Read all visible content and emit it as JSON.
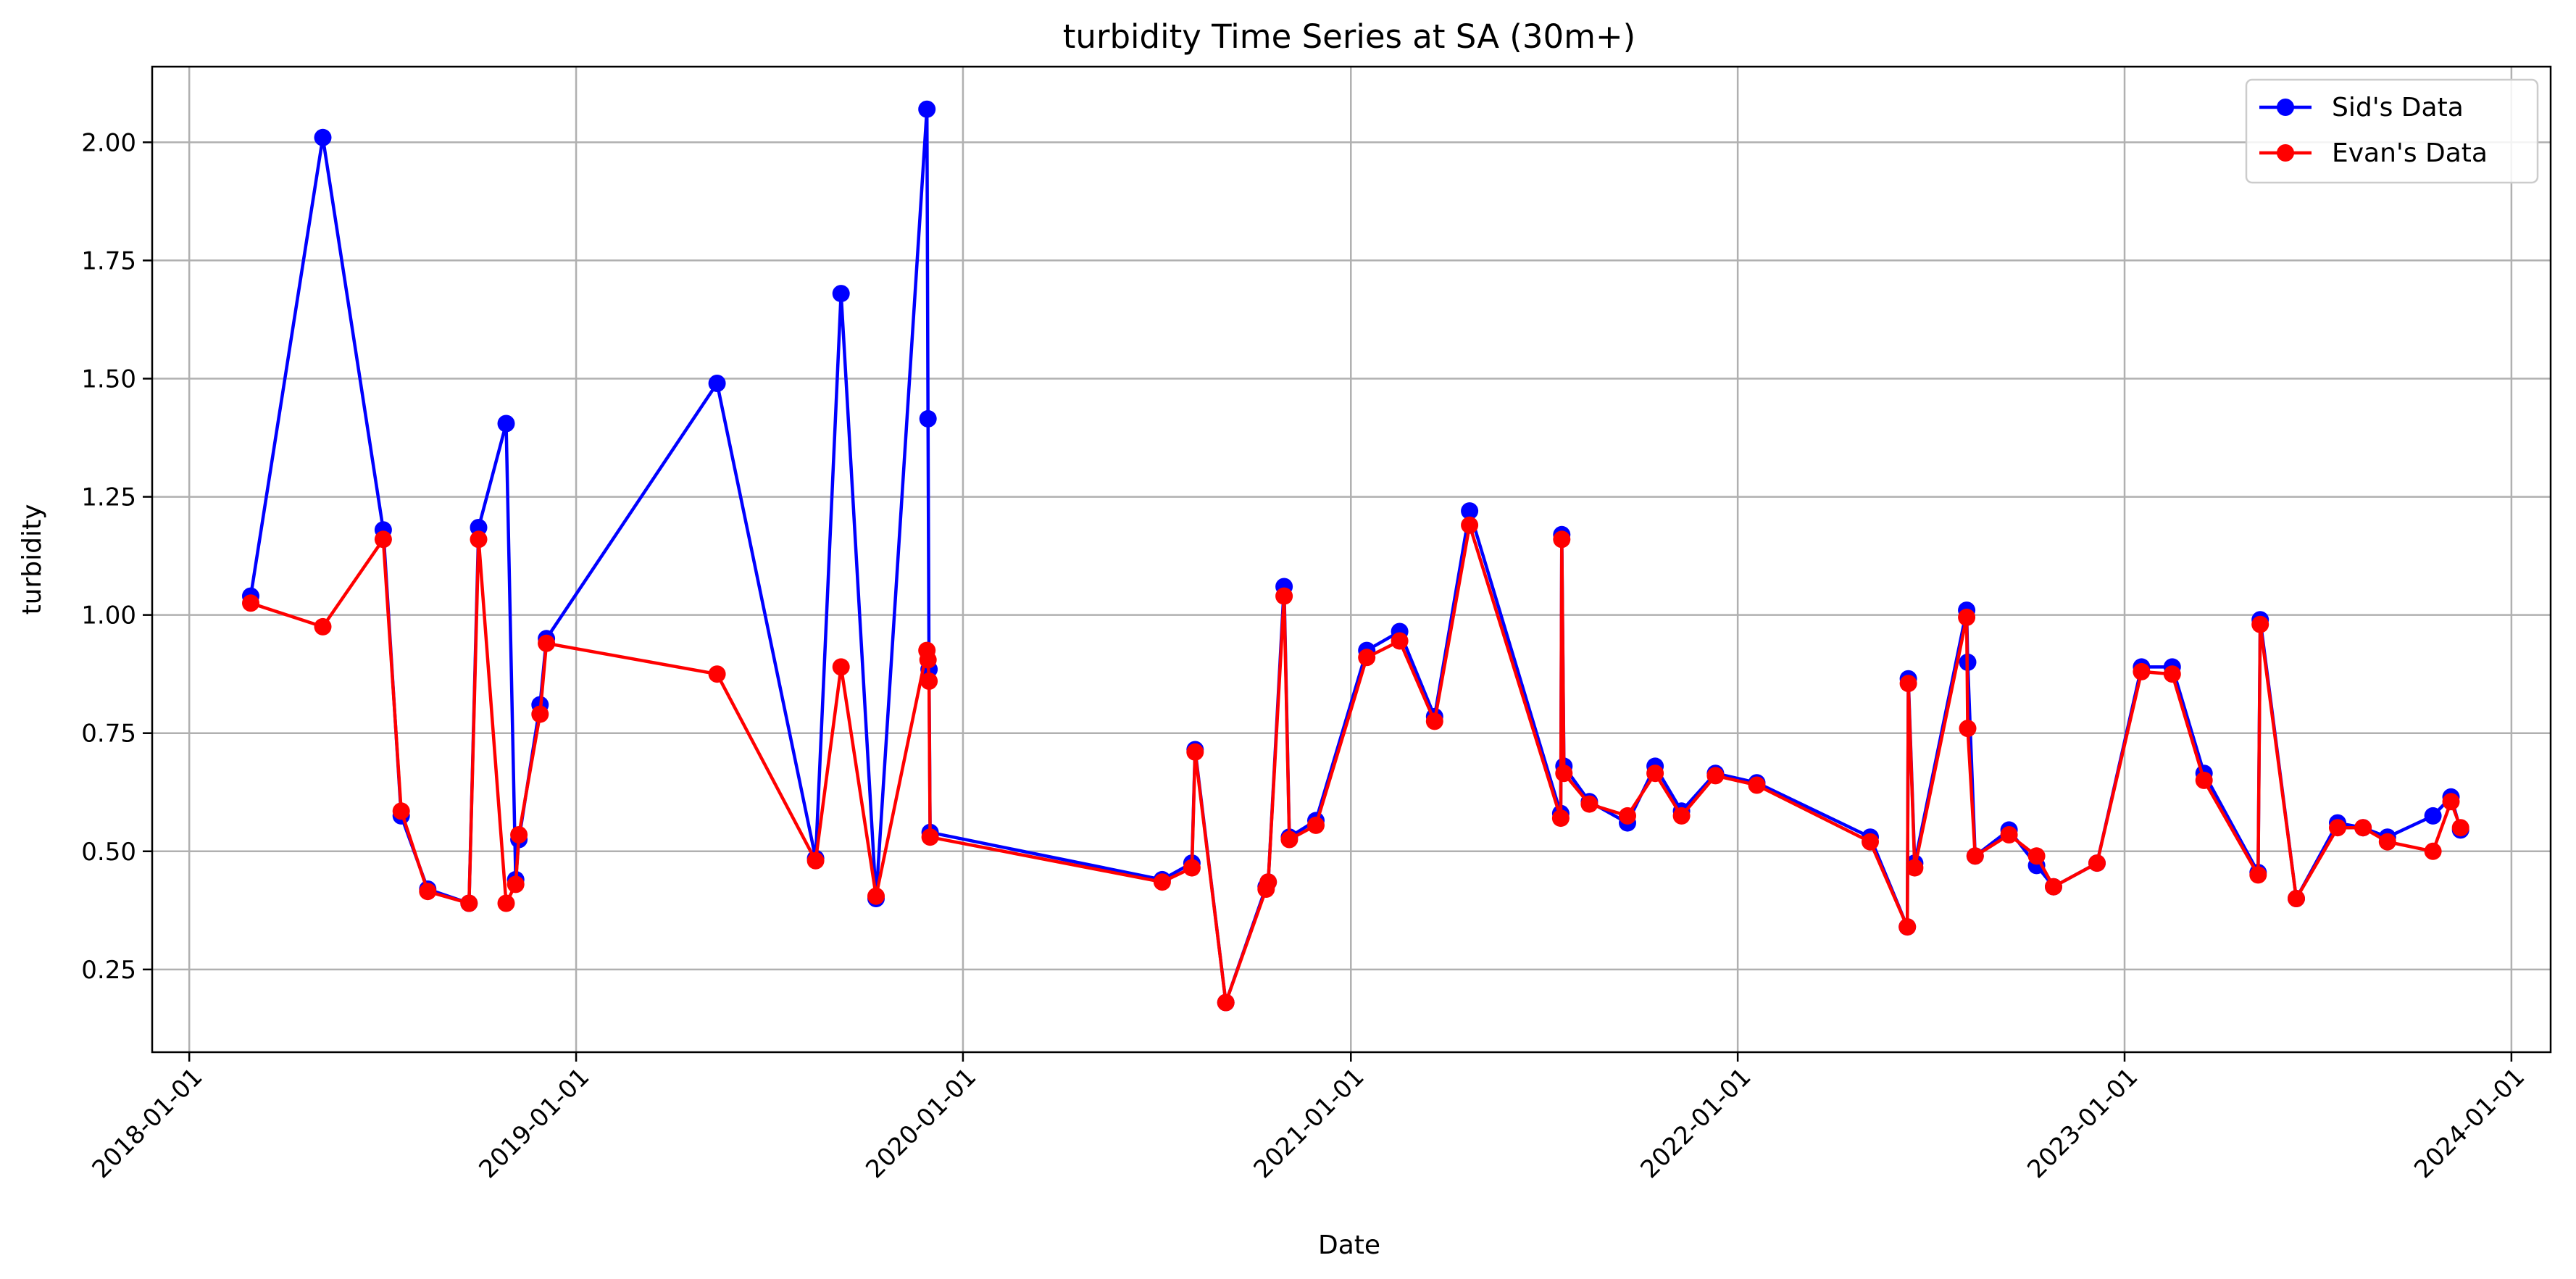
{
  "chart_data": {
    "type": "line",
    "title": "turbidity Time Series at SA (30m+)",
    "xlabel": "Date",
    "ylabel": "turbidity",
    "x_type": "date",
    "xlim": [
      "2017-11-27",
      "2024-02-07"
    ],
    "ylim": [
      0.075,
      2.16
    ],
    "x_ticks": [
      "2018-01-01",
      "2019-01-01",
      "2020-01-01",
      "2021-01-01",
      "2022-01-01",
      "2023-01-01",
      "2024-01-01"
    ],
    "y_ticks": [
      0.25,
      0.5,
      0.75,
      1.0,
      1.25,
      1.5,
      1.75,
      2.0
    ],
    "y_tick_labels": [
      "0.25",
      "0.50",
      "0.75",
      "1.00",
      "1.25",
      "1.50",
      "1.75",
      "2.00"
    ],
    "grid": true,
    "legend_position": "top-right",
    "series": [
      {
        "name": "Sid's Data",
        "color": "#0000ff",
        "points": [
          [
            "2018-02-28",
            1.04
          ],
          [
            "2018-05-07",
            2.01
          ],
          [
            "2018-07-03",
            1.18
          ],
          [
            "2018-07-20",
            0.575
          ],
          [
            "2018-08-14",
            0.42
          ],
          [
            "2018-09-22",
            0.39
          ],
          [
            "2018-10-01",
            1.185
          ],
          [
            "2018-10-27",
            1.405
          ],
          [
            "2018-11-05",
            0.44
          ],
          [
            "2018-11-08",
            0.525
          ],
          [
            "2018-11-28",
            0.81
          ],
          [
            "2018-12-04",
            0.95
          ],
          [
            "2019-05-14",
            1.49
          ],
          [
            "2019-08-15",
            0.485
          ],
          [
            "2019-09-08",
            1.68
          ],
          [
            "2019-10-11",
            0.4
          ],
          [
            "2019-11-28",
            2.07
          ],
          [
            "2019-11-29",
            1.415
          ],
          [
            "2019-11-30",
            0.885
          ],
          [
            "2019-12-01",
            0.54
          ],
          [
            "2020-07-07",
            0.44
          ],
          [
            "2020-08-04",
            0.475
          ],
          [
            "2020-08-07",
            0.715
          ],
          [
            "2020-09-05",
            0.18
          ],
          [
            "2020-10-13",
            0.425
          ],
          [
            "2020-10-15",
            0.435
          ],
          [
            "2020-10-30",
            1.06
          ],
          [
            "2020-11-04",
            0.53
          ],
          [
            "2020-11-29",
            0.565
          ],
          [
            "2021-01-16",
            0.925
          ],
          [
            "2021-02-16",
            0.965
          ],
          [
            "2021-03-21",
            0.785
          ],
          [
            "2021-04-23",
            1.22
          ],
          [
            "2021-07-18",
            0.58
          ],
          [
            "2021-07-19",
            1.17
          ],
          [
            "2021-07-21",
            0.68
          ],
          [
            "2021-08-14",
            0.605
          ],
          [
            "2021-09-19",
            0.56
          ],
          [
            "2021-10-15",
            0.68
          ],
          [
            "2021-11-09",
            0.585
          ],
          [
            "2021-12-11",
            0.665
          ],
          [
            "2022-01-19",
            0.645
          ],
          [
            "2022-05-06",
            0.53
          ],
          [
            "2022-06-10",
            0.34
          ],
          [
            "2022-06-11",
            0.865
          ],
          [
            "2022-06-17",
            0.475
          ],
          [
            "2022-08-05",
            1.01
          ],
          [
            "2022-08-06",
            0.9
          ],
          [
            "2022-08-13",
            0.49
          ],
          [
            "2022-09-14",
            0.545
          ],
          [
            "2022-10-10",
            0.47
          ],
          [
            "2022-10-26",
            0.425
          ],
          [
            "2022-12-06",
            0.475
          ],
          [
            "2023-01-17",
            0.89
          ],
          [
            "2023-02-15",
            0.89
          ],
          [
            "2023-03-17",
            0.665
          ],
          [
            "2023-05-07",
            0.455
          ],
          [
            "2023-05-09",
            0.99
          ],
          [
            "2023-06-12",
            0.4
          ],
          [
            "2023-07-21",
            0.56
          ],
          [
            "2023-08-14",
            0.55
          ],
          [
            "2023-09-06",
            0.53
          ],
          [
            "2023-10-19",
            0.575
          ],
          [
            "2023-11-05",
            0.615
          ],
          [
            "2023-11-14",
            0.545
          ]
        ]
      },
      {
        "name": "Evan's Data",
        "color": "#ff0000",
        "points": [
          [
            "2018-02-28",
            1.025
          ],
          [
            "2018-05-07",
            0.975
          ],
          [
            "2018-07-03",
            1.16
          ],
          [
            "2018-07-20",
            0.585
          ],
          [
            "2018-08-14",
            0.415
          ],
          [
            "2018-09-22",
            0.39
          ],
          [
            "2018-10-01",
            1.16
          ],
          [
            "2018-10-27",
            0.39
          ],
          [
            "2018-11-05",
            0.43
          ],
          [
            "2018-11-08",
            0.535
          ],
          [
            "2018-11-28",
            0.79
          ],
          [
            "2018-12-04",
            0.94
          ],
          [
            "2019-05-14",
            0.875
          ],
          [
            "2019-08-15",
            0.48
          ],
          [
            "2019-09-08",
            0.89
          ],
          [
            "2019-10-11",
            0.405
          ],
          [
            "2019-11-28",
            0.925
          ],
          [
            "2019-11-29",
            0.905
          ],
          [
            "2019-11-30",
            0.86
          ],
          [
            "2019-12-01",
            0.53
          ],
          [
            "2020-07-07",
            0.435
          ],
          [
            "2020-08-04",
            0.465
          ],
          [
            "2020-08-07",
            0.71
          ],
          [
            "2020-09-05",
            0.18
          ],
          [
            "2020-10-13",
            0.42
          ],
          [
            "2020-10-15",
            0.435
          ],
          [
            "2020-10-30",
            1.04
          ],
          [
            "2020-11-04",
            0.525
          ],
          [
            "2020-11-29",
            0.555
          ],
          [
            "2021-01-16",
            0.91
          ],
          [
            "2021-02-16",
            0.945
          ],
          [
            "2021-03-21",
            0.775
          ],
          [
            "2021-04-23",
            1.19
          ],
          [
            "2021-07-18",
            0.57
          ],
          [
            "2021-07-19",
            1.16
          ],
          [
            "2021-07-21",
            0.665
          ],
          [
            "2021-08-14",
            0.6
          ],
          [
            "2021-09-19",
            0.575
          ],
          [
            "2021-10-15",
            0.665
          ],
          [
            "2021-11-09",
            0.575
          ],
          [
            "2021-12-11",
            0.66
          ],
          [
            "2022-01-19",
            0.64
          ],
          [
            "2022-05-06",
            0.52
          ],
          [
            "2022-06-10",
            0.34
          ],
          [
            "2022-06-11",
            0.855
          ],
          [
            "2022-06-17",
            0.465
          ],
          [
            "2022-08-05",
            0.995
          ],
          [
            "2022-08-06",
            0.76
          ],
          [
            "2022-08-13",
            0.49
          ],
          [
            "2022-09-14",
            0.535
          ],
          [
            "2022-10-10",
            0.49
          ],
          [
            "2022-10-26",
            0.425
          ],
          [
            "2022-12-06",
            0.475
          ],
          [
            "2023-01-17",
            0.88
          ],
          [
            "2023-02-15",
            0.875
          ],
          [
            "2023-03-17",
            0.65
          ],
          [
            "2023-05-07",
            0.45
          ],
          [
            "2023-05-09",
            0.98
          ],
          [
            "2023-06-12",
            0.4
          ],
          [
            "2023-07-21",
            0.55
          ],
          [
            "2023-08-14",
            0.55
          ],
          [
            "2023-09-06",
            0.52
          ],
          [
            "2023-10-19",
            0.5
          ],
          [
            "2023-11-05",
            0.605
          ],
          [
            "2023-11-14",
            0.55
          ]
        ]
      }
    ]
  }
}
